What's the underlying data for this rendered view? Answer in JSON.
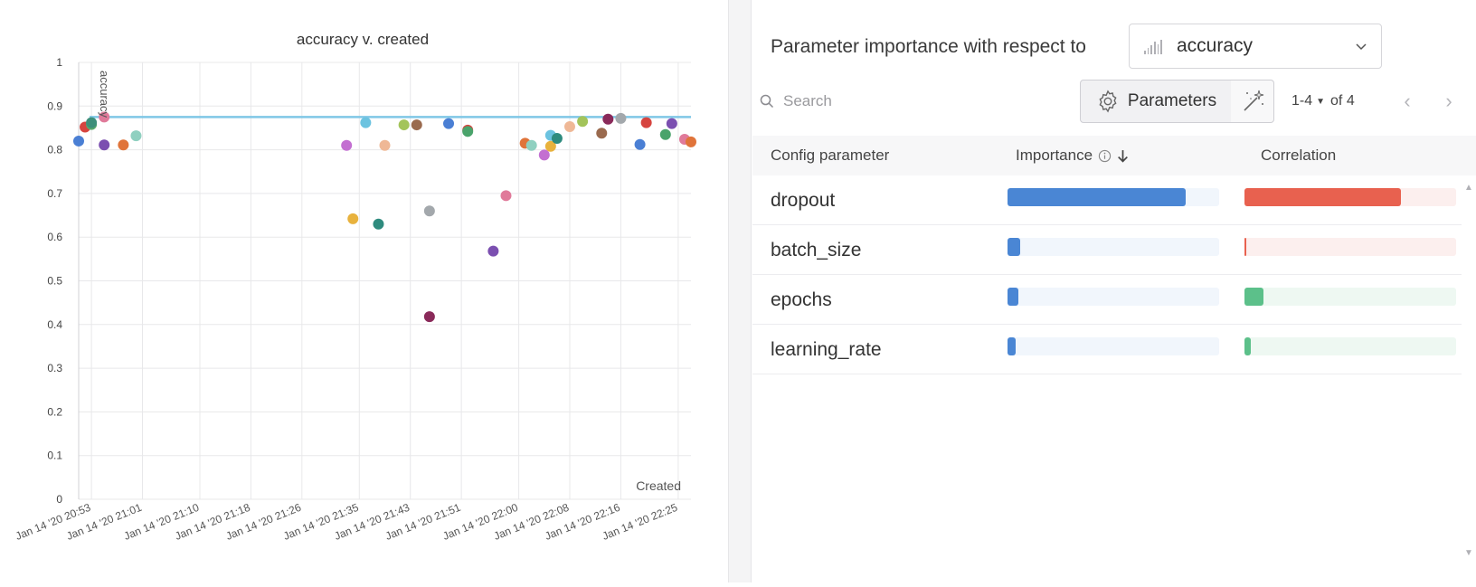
{
  "chart_data": {
    "type": "scatter",
    "title": "accuracy v. created",
    "xlabel": "Created",
    "ylabel": "accuracy",
    "ylim": [
      0,
      1
    ],
    "yticks": [
      "0",
      "0.1",
      "0.2",
      "0.3",
      "0.4",
      "0.5",
      "0.6",
      "0.7",
      "0.8",
      "0.9",
      "1"
    ],
    "xticks": [
      "Jan 14 '20 20:53",
      "Jan 14 '20 21:01",
      "Jan 14 '20 21:10",
      "Jan 14 '20 21:18",
      "Jan 14 '20 21:26",
      "Jan 14 '20 21:35",
      "Jan 14 '20 21:43",
      "Jan 14 '20 21:51",
      "Jan 14 '20 22:00",
      "Jan 14 '20 22:08",
      "Jan 14 '20 22:16",
      "Jan 14 '20 22:25"
    ],
    "xlim": [
      "Jan 14 '20 20:51",
      "Jan 14 '20 22:27"
    ],
    "grid": true,
    "reference_line": {
      "y": 0.875,
      "color": "#7fc7e6"
    },
    "points": [
      {
        "x": "Jan 14 '20 20:51",
        "y": 0.82,
        "color": "#4a7fd4"
      },
      {
        "x": "Jan 14 '20 20:52",
        "y": 0.852,
        "color": "#d6443f"
      },
      {
        "x": "Jan 14 '20 20:53",
        "y": 0.858,
        "color": "#5aa96b"
      },
      {
        "x": "Jan 14 '20 20:53",
        "y": 0.862,
        "color": "#3d8f7a"
      },
      {
        "x": "Jan 14 '20 20:55",
        "y": 0.811,
        "color": "#7b4fb0"
      },
      {
        "x": "Jan 14 '20 20:55",
        "y": 0.875,
        "color": "#e07a9a"
      },
      {
        "x": "Jan 14 '20 20:58",
        "y": 0.811,
        "color": "#e0743a"
      },
      {
        "x": "Jan 14 '20 21:00",
        "y": 0.832,
        "color": "#8fd0c0"
      },
      {
        "x": "Jan 14 '20 21:33",
        "y": 0.81,
        "color": "#c36fd1"
      },
      {
        "x": "Jan 14 '20 21:34",
        "y": 0.642,
        "color": "#e8b23d"
      },
      {
        "x": "Jan 14 '20 21:36",
        "y": 0.862,
        "color": "#6cc3e0"
      },
      {
        "x": "Jan 14 '20 21:38",
        "y": 0.63,
        "color": "#2e8b7e"
      },
      {
        "x": "Jan 14 '20 21:39",
        "y": 0.81,
        "color": "#efb896"
      },
      {
        "x": "Jan 14 '20 21:42",
        "y": 0.857,
        "color": "#a3c45a"
      },
      {
        "x": "Jan 14 '20 21:44",
        "y": 0.857,
        "color": "#9a6a4e"
      },
      {
        "x": "Jan 14 '20 21:46",
        "y": 0.418,
        "color": "#8a2a5a"
      },
      {
        "x": "Jan 14 '20 21:46",
        "y": 0.66,
        "color": "#a3a8ac"
      },
      {
        "x": "Jan 14 '20 21:49",
        "y": 0.86,
        "color": "#4a7fd4"
      },
      {
        "x": "Jan 14 '20 21:52",
        "y": 0.845,
        "color": "#d6443f"
      },
      {
        "x": "Jan 14 '20 21:52",
        "y": 0.842,
        "color": "#4aa36b"
      },
      {
        "x": "Jan 14 '20 21:56",
        "y": 0.568,
        "color": "#7b4fb0"
      },
      {
        "x": "Jan 14 '20 21:58",
        "y": 0.695,
        "color": "#e07a9a"
      },
      {
        "x": "Jan 14 '20 22:01",
        "y": 0.815,
        "color": "#e0743a"
      },
      {
        "x": "Jan 14 '20 22:02",
        "y": 0.81,
        "color": "#8fd0c0"
      },
      {
        "x": "Jan 14 '20 22:04",
        "y": 0.788,
        "color": "#c36fd1"
      },
      {
        "x": "Jan 14 '20 22:05",
        "y": 0.808,
        "color": "#e8b23d"
      },
      {
        "x": "Jan 14 '20 22:05",
        "y": 0.833,
        "color": "#6cc3e0"
      },
      {
        "x": "Jan 14 '20 22:06",
        "y": 0.826,
        "color": "#2e8b7e"
      },
      {
        "x": "Jan 14 '20 22:08",
        "y": 0.853,
        "color": "#efb896"
      },
      {
        "x": "Jan 14 '20 22:10",
        "y": 0.865,
        "color": "#a3c45a"
      },
      {
        "x": "Jan 14 '20 22:13",
        "y": 0.838,
        "color": "#9a6a4e"
      },
      {
        "x": "Jan 14 '20 22:14",
        "y": 0.87,
        "color": "#8a2a5a"
      },
      {
        "x": "Jan 14 '20 22:16",
        "y": 0.872,
        "color": "#a3a8ac"
      },
      {
        "x": "Jan 14 '20 22:19",
        "y": 0.812,
        "color": "#4a7fd4"
      },
      {
        "x": "Jan 14 '20 22:20",
        "y": 0.862,
        "color": "#d6443f"
      },
      {
        "x": "Jan 14 '20 22:23",
        "y": 0.835,
        "color": "#4aa36b"
      },
      {
        "x": "Jan 14 '20 22:24",
        "y": 0.86,
        "color": "#7b4fb0"
      },
      {
        "x": "Jan 14 '20 22:26",
        "y": 0.824,
        "color": "#e07a9a"
      },
      {
        "x": "Jan 14 '20 22:27",
        "y": 0.818,
        "color": "#e0743a"
      }
    ]
  },
  "panel": {
    "title": "Parameter importance with respect to",
    "metric": {
      "selected": "accuracy",
      "icon": "bar-chart-icon"
    },
    "search": {
      "placeholder": "Search",
      "icon": "search-icon"
    },
    "parameters_button": {
      "label": "Parameters",
      "icon": "gear-icon"
    },
    "magic_button": {
      "icon": "magic-wand-icon"
    },
    "pager": {
      "range": "1-4",
      "of": "of 4"
    },
    "columns": {
      "param": "Config parameter",
      "importance": "Importance",
      "correlation": "Correlation"
    },
    "rows": [
      {
        "name": "dropout",
        "importance": 0.84,
        "correlation": 0.74,
        "correlation_sign": "negative"
      },
      {
        "name": "batch_size",
        "importance": 0.06,
        "correlation": 0.01,
        "correlation_sign": "negative"
      },
      {
        "name": "epochs",
        "importance": 0.05,
        "correlation": 0.09,
        "correlation_sign": "positive"
      },
      {
        "name": "learning_rate",
        "importance": 0.04,
        "correlation": 0.03,
        "correlation_sign": "positive"
      }
    ],
    "colors": {
      "importance": "#4a86d4",
      "importance_track": "#f1f6fc",
      "negative": "#e8614f",
      "negative_track": "#fcefee",
      "positive": "#5cc08a",
      "positive_track": "#eef8f2"
    }
  }
}
